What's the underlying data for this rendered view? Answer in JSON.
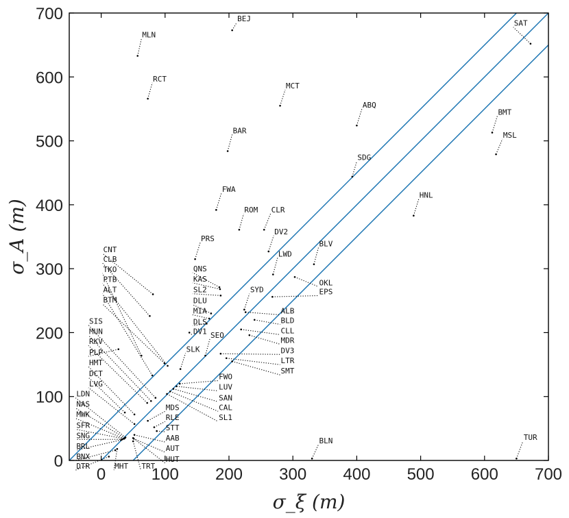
{
  "chart_data": {
    "type": "scatter",
    "xlabel": "σ_ξ (m)",
    "ylabel": "σ_A (m)",
    "xlim": [
      -50,
      700
    ],
    "ylim": [
      0,
      700
    ],
    "xticks": [
      0,
      100,
      200,
      300,
      400,
      500,
      600,
      700
    ],
    "yticks": [
      0,
      100,
      200,
      300,
      400,
      500,
      600,
      700
    ],
    "grid": false,
    "colors": {
      "lines": "#1f77b4",
      "points": "#000000",
      "leader": "#000000"
    },
    "lines": [
      {
        "slope": 1,
        "intercept": 50
      },
      {
        "slope": 1,
        "intercept": 0
      },
      {
        "slope": 1,
        "intercept": -50
      }
    ],
    "points": [
      {
        "label": "BEJ",
        "x": 205,
        "y": 673,
        "lx": 212,
        "ly": 687
      },
      {
        "label": "MLN",
        "x": 57,
        "y": 633,
        "lx": 63,
        "ly": 662
      },
      {
        "label": "RCT",
        "x": 73,
        "y": 566,
        "lx": 80,
        "ly": 593
      },
      {
        "label": "MCT",
        "x": 280,
        "y": 555,
        "lx": 288,
        "ly": 582
      },
      {
        "label": "ABQ",
        "x": 400,
        "y": 524,
        "lx": 408,
        "ly": 552
      },
      {
        "label": "BAR",
        "x": 198,
        "y": 484,
        "lx": 205,
        "ly": 512
      },
      {
        "label": "SAT",
        "x": 672,
        "y": 652,
        "lx": 645,
        "ly": 680
      },
      {
        "label": "BMT",
        "x": 612,
        "y": 513,
        "lx": 620,
        "ly": 541
      },
      {
        "label": "MSL",
        "x": 618,
        "y": 479,
        "lx": 628,
        "ly": 505
      },
      {
        "label": "SDG",
        "x": 393,
        "y": 444,
        "lx": 400,
        "ly": 470
      },
      {
        "label": "FWA",
        "x": 180,
        "y": 392,
        "lx": 188,
        "ly": 420
      },
      {
        "label": "ROM",
        "x": 216,
        "y": 361,
        "lx": 223,
        "ly": 388
      },
      {
        "label": "CLR",
        "x": 255,
        "y": 361,
        "lx": 265,
        "ly": 388
      },
      {
        "label": "HNL",
        "x": 489,
        "y": 383,
        "lx": 497,
        "ly": 411
      },
      {
        "label": "DV2",
        "x": 262,
        "y": 327,
        "lx": 270,
        "ly": 354
      },
      {
        "label": "PRS",
        "x": 147,
        "y": 315,
        "lx": 155,
        "ly": 343
      },
      {
        "label": "BLV",
        "x": 333,
        "y": 307,
        "lx": 340,
        "ly": 335
      },
      {
        "label": "LWD",
        "x": 269,
        "y": 291,
        "lx": 276,
        "ly": 319
      },
      {
        "label": "OKL",
        "x": 303,
        "y": 287,
        "lx": 340,
        "ly": 274
      },
      {
        "label": "EPS",
        "x": 268,
        "y": 256,
        "lx": 340,
        "ly": 260
      },
      {
        "label": "SYD",
        "x": 224,
        "y": 236,
        "lx": 232,
        "ly": 263
      },
      {
        "label": "ALB",
        "x": 226,
        "y": 232,
        "lx": 280,
        "ly": 230
      },
      {
        "label": "BLD",
        "x": 240,
        "y": 220,
        "lx": 280,
        "ly": 215
      },
      {
        "label": "CLL",
        "x": 219,
        "y": 205,
        "lx": 280,
        "ly": 199
      },
      {
        "label": "MDR",
        "x": 232,
        "y": 196,
        "lx": 280,
        "ly": 184
      },
      {
        "label": "DV3",
        "x": 187,
        "y": 167,
        "lx": 280,
        "ly": 168
      },
      {
        "label": "LTR",
        "x": 196,
        "y": 160,
        "lx": 280,
        "ly": 152
      },
      {
        "label": "SMT",
        "x": 205,
        "y": 155,
        "lx": 280,
        "ly": 136
      },
      {
        "label": "SEO",
        "x": 163,
        "y": 164,
        "lx": 170,
        "ly": 192
      },
      {
        "label": "SLK",
        "x": 124,
        "y": 143,
        "lx": 132,
        "ly": 170
      },
      {
        "label": "QNS",
        "x": 185,
        "y": 271,
        "lx": 143,
        "ly": 296
      },
      {
        "label": "KAS",
        "x": 186,
        "y": 268,
        "lx": 143,
        "ly": 280
      },
      {
        "label": "SL2",
        "x": 187,
        "y": 258,
        "lx": 143,
        "ly": 263
      },
      {
        "label": "DLU",
        "x": 172,
        "y": 230,
        "lx": 143,
        "ly": 246
      },
      {
        "label": "MIA",
        "x": 169,
        "y": 222,
        "lx": 143,
        "ly": 230
      },
      {
        "label": "DLS",
        "x": 165,
        "y": 214,
        "lx": 143,
        "ly": 213
      },
      {
        "label": "DV1",
        "x": 138,
        "y": 200,
        "lx": 143,
        "ly": 198
      },
      {
        "label": "FWO",
        "x": 123,
        "y": 120,
        "lx": 183,
        "ly": 127
      },
      {
        "label": "LUV",
        "x": 118,
        "y": 116,
        "lx": 183,
        "ly": 111
      },
      {
        "label": "SAN",
        "x": 113,
        "y": 112,
        "lx": 183,
        "ly": 94
      },
      {
        "label": "CAL",
        "x": 108,
        "y": 108,
        "lx": 183,
        "ly": 79
      },
      {
        "label": "SL1",
        "x": 103,
        "y": 104,
        "lx": 183,
        "ly": 63
      },
      {
        "label": "CNT",
        "x": 81,
        "y": 260,
        "lx": 2,
        "ly": 326
      },
      {
        "label": "CLB",
        "x": 76,
        "y": 226,
        "lx": 2,
        "ly": 311
      },
      {
        "label": "TKO",
        "x": 63,
        "y": 164,
        "lx": 2,
        "ly": 295
      },
      {
        "label": "PTB",
        "x": 104,
        "y": 148,
        "lx": 2,
        "ly": 279
      },
      {
        "label": "ALT",
        "x": 80,
        "y": 133,
        "lx": 2,
        "ly": 263
      },
      {
        "label": "BTM",
        "x": 99,
        "y": 152,
        "lx": 2,
        "ly": 247
      },
      {
        "label": "SIS",
        "x": 85,
        "y": 98,
        "lx": -20,
        "ly": 214
      },
      {
        "label": "MUN",
        "x": 78,
        "y": 93,
        "lx": -20,
        "ly": 198
      },
      {
        "label": "RKV",
        "x": 72,
        "y": 90,
        "lx": -20,
        "ly": 182
      },
      {
        "label": "PLP",
        "x": 27,
        "y": 174,
        "lx": -20,
        "ly": 165
      },
      {
        "label": "HMT",
        "x": 52,
        "y": 72,
        "lx": -20,
        "ly": 149
      },
      {
        "label": "DCT",
        "x": 37,
        "y": 75,
        "lx": -20,
        "ly": 132
      },
      {
        "label": "LVG",
        "x": 52,
        "y": 57,
        "lx": -20,
        "ly": 116
      },
      {
        "label": "LDN",
        "x": 38,
        "y": 36,
        "lx": -40,
        "ly": 100
      },
      {
        "label": "NAS",
        "x": 37,
        "y": 35,
        "lx": -40,
        "ly": 84
      },
      {
        "label": "MWK",
        "x": 36,
        "y": 34,
        "lx": -40,
        "ly": 68
      },
      {
        "label": "SFR",
        "x": 35,
        "y": 34,
        "lx": -40,
        "ly": 51
      },
      {
        "label": "SNG",
        "x": 33,
        "y": 33,
        "lx": -40,
        "ly": 35
      },
      {
        "label": "BRL",
        "x": 31,
        "y": 32,
        "lx": -40,
        "ly": 18
      },
      {
        "label": "BNX",
        "x": 22,
        "y": 16,
        "lx": -40,
        "ly": 2
      },
      {
        "label": "DTR",
        "x": 12,
        "y": 6,
        "lx": -40,
        "ly": -13
      },
      {
        "label": "MHT",
        "x": 25,
        "y": 18,
        "lx": 20,
        "ly": -13
      },
      {
        "label": "TRT",
        "x": 50,
        "y": 30,
        "lx": 62,
        "ly": -13
      },
      {
        "label": "MDS",
        "x": 73,
        "y": 62,
        "lx": 100,
        "ly": 79
      },
      {
        "label": "RLE",
        "x": 83,
        "y": 52,
        "lx": 100,
        "ly": 63
      },
      {
        "label": "STT",
        "x": 87,
        "y": 46,
        "lx": 100,
        "ly": 47
      },
      {
        "label": "AAB",
        "x": 52,
        "y": 40,
        "lx": 100,
        "ly": 31
      },
      {
        "label": "AUT",
        "x": 51,
        "y": 34,
        "lx": 100,
        "ly": 15
      },
      {
        "label": "HUT",
        "x": 50,
        "y": 35,
        "lx": 100,
        "ly": -2
      },
      {
        "label": "BLN",
        "x": 330,
        "y": 3,
        "lx": 340,
        "ly": 27
      },
      {
        "label": "TUR",
        "x": 650,
        "y": 3,
        "lx": 660,
        "ly": 32
      }
    ]
  }
}
